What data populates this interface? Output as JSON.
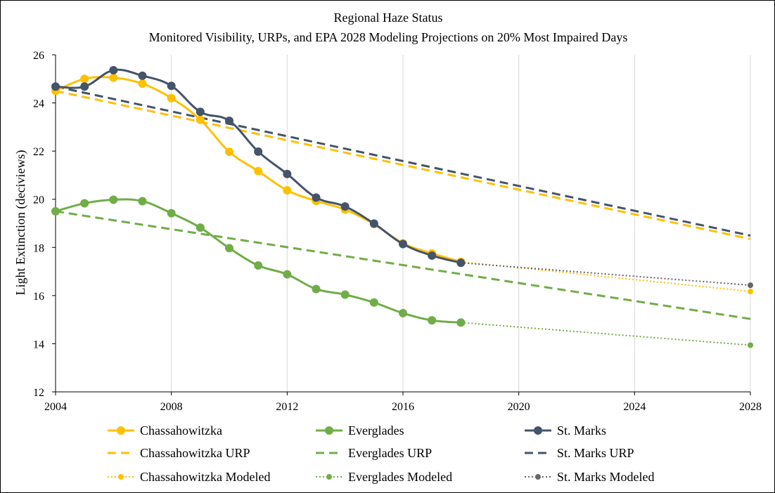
{
  "chart_data": {
    "type": "line",
    "title": "Regional Haze Status",
    "subtitle": "Monitored Visibility, URPs, and EPA 2028 Modeling Projections on 20% Most Impaired Days",
    "xlabel": "",
    "ylabel": "Light Extinction (deciviews)",
    "xlim": [
      2004,
      2028
    ],
    "ylim": [
      12,
      26
    ],
    "x_ticks": [
      2004,
      2008,
      2012,
      2016,
      2020,
      2024,
      2028
    ],
    "y_ticks": [
      12,
      14,
      16,
      18,
      20,
      22,
      24,
      26
    ],
    "grid": "vertical",
    "legend_position": "bottom",
    "series": [
      {
        "name": "Chassahowitzka",
        "color": "#FFC000",
        "style": "solid-marker",
        "x": [
          2004,
          2005,
          2006,
          2007,
          2008,
          2009,
          2010,
          2011,
          2012,
          2013,
          2014,
          2015,
          2016,
          2017,
          2018
        ],
        "values": [
          24.5,
          25.0,
          25.05,
          24.8,
          24.2,
          23.3,
          21.97,
          21.17,
          20.37,
          19.93,
          19.57,
          18.97,
          18.17,
          17.75,
          17.4
        ]
      },
      {
        "name": "Everglades",
        "color": "#70AD47",
        "style": "solid-marker",
        "x": [
          2004,
          2005,
          2006,
          2007,
          2008,
          2009,
          2010,
          2011,
          2012,
          2013,
          2014,
          2015,
          2016,
          2017,
          2018
        ],
        "values": [
          19.5,
          19.83,
          19.98,
          19.92,
          19.42,
          18.82,
          17.97,
          17.25,
          16.88,
          16.27,
          16.04,
          15.71,
          15.27,
          14.97,
          14.88
        ]
      },
      {
        "name": "St. Marks",
        "color": "#44546A",
        "style": "solid-marker",
        "x": [
          2004,
          2005,
          2006,
          2007,
          2008,
          2009,
          2010,
          2011,
          2012,
          2013,
          2014,
          2015,
          2016,
          2017,
          2018
        ],
        "values": [
          24.68,
          24.68,
          25.36,
          25.13,
          24.71,
          23.63,
          23.26,
          21.98,
          21.05,
          20.07,
          19.7,
          18.99,
          18.14,
          17.66,
          17.36
        ]
      },
      {
        "name": "Chassahowitzka URP",
        "color": "#FFC000",
        "style": "dashed",
        "x": [
          2004,
          2028
        ],
        "values": [
          24.5,
          18.35
        ]
      },
      {
        "name": "Everglades URP",
        "color": "#70AD47",
        "style": "dashed",
        "x": [
          2004,
          2028
        ],
        "values": [
          19.5,
          15.03
        ]
      },
      {
        "name": "St. Marks URP",
        "color": "#44546A",
        "style": "dashed",
        "x": [
          2004,
          2028
        ],
        "values": [
          24.68,
          18.49
        ]
      },
      {
        "name": "Chassahowitzka Modeled",
        "color": "#FFC000",
        "style": "dotted-marker",
        "x": [
          2018,
          2028
        ],
        "values": [
          17.4,
          16.17
        ]
      },
      {
        "name": "Everglades Modeled",
        "color": "#70AD47",
        "style": "dotted-marker",
        "x": [
          2018,
          2028
        ],
        "values": [
          14.88,
          13.94
        ]
      },
      {
        "name": "St. Marks Modeled",
        "color": "#666666",
        "style": "dotted-marker",
        "x": [
          2018,
          2028
        ],
        "values": [
          17.36,
          16.43
        ]
      }
    ]
  }
}
